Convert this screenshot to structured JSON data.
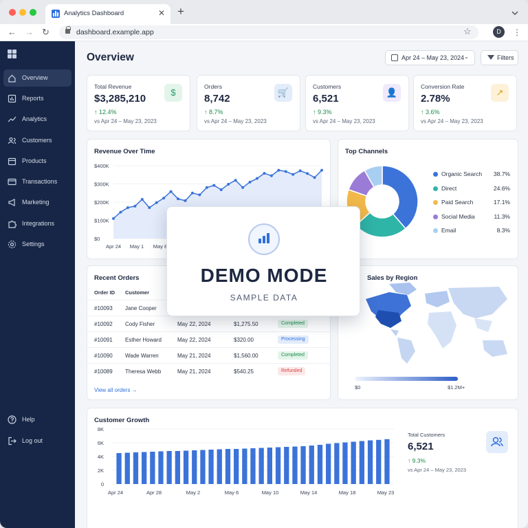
{
  "browser": {
    "tab_title": "Analytics Dashboard",
    "new_tab_symbol": "+",
    "url": "dashboard.example.app",
    "profile_initial": "D"
  },
  "sidebar": {
    "items": [
      {
        "label": "Overview",
        "icon": "home-icon",
        "active": true
      },
      {
        "label": "Reports",
        "icon": "bar-chart-icon"
      },
      {
        "label": "Analytics",
        "icon": "trend-icon"
      },
      {
        "label": "Customers",
        "icon": "users-icon"
      },
      {
        "label": "Products",
        "icon": "box-icon"
      },
      {
        "label": "Transactions",
        "icon": "card-icon"
      },
      {
        "label": "Marketing",
        "icon": "megaphone-icon"
      },
      {
        "label": "Integrations",
        "icon": "puzzle-icon"
      },
      {
        "label": "Settings",
        "icon": "gear-icon"
      }
    ],
    "footer": [
      {
        "label": "Help",
        "icon": "help-icon"
      },
      {
        "label": "Log out",
        "icon": "logout-icon"
      }
    ]
  },
  "header": {
    "title": "Overview",
    "date_range": "Apr 24 – May 23, 2024",
    "filters_label": "Filters"
  },
  "kpis": [
    {
      "title": "Total Revenue",
      "value": "$3,285,210",
      "delta": "12.4%",
      "compare": "vs Apr 24 – May 23, 2023",
      "icon": "dollar-icon",
      "color": "#22a06b",
      "bg": "#e3f5ea",
      "glyph": "$"
    },
    {
      "title": "Orders",
      "value": "8,742",
      "delta": "8.7%",
      "compare": "vs Apr 24 – May 23, 2023",
      "icon": "cart-icon",
      "color": "#2f6fdf",
      "bg": "#e3ecfb",
      "glyph": "🛒"
    },
    {
      "title": "Customers",
      "value": "6,521",
      "delta": "9.3%",
      "compare": "vs Apr 24 – May 23, 2023",
      "icon": "user-icon",
      "color": "#7b5cc9",
      "bg": "#efe9fb",
      "glyph": "👤"
    },
    {
      "title": "Conversion Rate",
      "value": "2.78%",
      "delta": "3.6%",
      "compare": "vs Apr 24 – May 23, 2023",
      "icon": "trend-up-icon",
      "color": "#e0a31b",
      "bg": "#fdf2d8",
      "glyph": "↗"
    }
  ],
  "revenue_chart": {
    "title": "Revenue Over Time",
    "y_ticks": [
      "$400K",
      "$300K",
      "$200K",
      "$100K",
      "$0"
    ],
    "x_ticks": [
      "Apr 24",
      "May 1",
      "May 8"
    ]
  },
  "top_channels": {
    "title": "Top Channels",
    "items": [
      {
        "name": "Organic Search",
        "pct": "38.7%",
        "value": 38.7,
        "color": "#3b73d9"
      },
      {
        "name": "Direct",
        "pct": "24.6%",
        "value": 24.6,
        "color": "#2fb5a8"
      },
      {
        "name": "Paid Search",
        "pct": "17.1%",
        "value": 17.1,
        "color": "#f2b94a"
      },
      {
        "name": "Social Media",
        "pct": "11.3%",
        "value": 11.3,
        "color": "#9a7bd6"
      },
      {
        "name": "Email",
        "pct": "8.3%",
        "value": 8.3,
        "color": "#a8cff2"
      }
    ]
  },
  "recent_orders": {
    "title": "Recent Orders",
    "headers": {
      "id": "Order ID",
      "customer": "Customer"
    },
    "rows": [
      {
        "id": "#10093",
        "customer": "Jane Cooper",
        "date": "",
        "amount": "",
        "status": ""
      },
      {
        "id": "#10092",
        "customer": "Cody Fisher",
        "date": "May 22, 2024",
        "amount": "$1,275.50",
        "status": "Completed"
      },
      {
        "id": "#10091",
        "customer": "Esther Howard",
        "date": "May 22, 2024",
        "amount": "$320.00",
        "status": "Processing"
      },
      {
        "id": "#10090",
        "customer": "Wade Warren",
        "date": "May 21, 2024",
        "amount": "$1,560.00",
        "status": "Completed"
      },
      {
        "id": "#10089",
        "customer": "Theresa Webb",
        "date": "May 21, 2024",
        "amount": "$540.25",
        "status": "Refunded"
      }
    ],
    "view_all": "View all orders →"
  },
  "sales_region": {
    "title": "Sales by Region",
    "scale_min": "$0",
    "scale_max": "$1.2M+"
  },
  "customer_growth": {
    "title": "Customer Growth",
    "y_ticks": [
      "8K",
      "6K",
      "4K",
      "2K",
      "0"
    ],
    "x_ticks": [
      "Apr 24",
      "Apr 28",
      "May 2",
      "May 6",
      "May 10",
      "May 14",
      "May 18",
      "May 23"
    ],
    "total_label": "Total Customers",
    "total_value": "6,521",
    "total_delta": "9.3%",
    "total_compare": "vs Apr 24 – May 23, 2023"
  },
  "demo_overlay": {
    "title": "DEMO MODE",
    "subtitle": "SAMPLE DATA"
  },
  "chart_data": [
    {
      "type": "area",
      "title": "Revenue Over Time",
      "ylim": [
        0,
        400
      ],
      "y_unit": "$K",
      "x_ticks": [
        "Apr 24",
        "May 1",
        "May 8"
      ],
      "values": [
        110,
        145,
        170,
        178,
        215,
        170,
        197,
        222,
        258,
        218,
        208,
        250,
        240,
        280,
        292,
        268,
        298,
        320,
        280,
        310,
        330,
        358,
        345,
        375,
        368,
        352,
        372,
        357,
        335,
        375
      ]
    },
    {
      "type": "pie",
      "title": "Top Channels",
      "categories": [
        "Organic Search",
        "Direct",
        "Paid Search",
        "Social Media",
        "Email"
      ],
      "values": [
        38.7,
        24.6,
        17.1,
        11.3,
        8.3
      ]
    },
    {
      "type": "bar",
      "title": "Customer Growth",
      "ylim": [
        0,
        8000
      ],
      "x_ticks": [
        "Apr 24",
        "Apr 28",
        "May 2",
        "May 6",
        "May 10",
        "May 14",
        "May 18",
        "May 23"
      ],
      "values": [
        4500,
        4550,
        4600,
        4650,
        4700,
        4750,
        4800,
        4800,
        4850,
        4900,
        4950,
        5000,
        5050,
        5100,
        5100,
        5150,
        5200,
        5250,
        5300,
        5350,
        5400,
        5450,
        5500,
        5600,
        5700,
        5850,
        5950,
        6050,
        6150,
        6250,
        6350,
        6420,
        6521
      ]
    }
  ]
}
